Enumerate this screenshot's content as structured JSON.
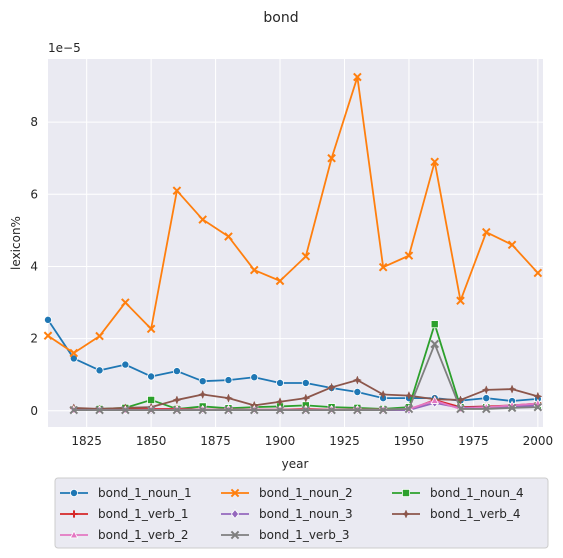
{
  "chart_data": {
    "type": "line",
    "title": "bond",
    "xlabel": "year",
    "ylabel": "lexicon%",
    "y_multiplier_label": "1e−5",
    "xlim": [
      1810,
      2002
    ],
    "ylim": [
      -0.45,
      9.75
    ],
    "xticks": [
      1825,
      1850,
      1875,
      1900,
      1925,
      1950,
      1975,
      2000
    ],
    "yticks": [
      0,
      2,
      4,
      6,
      8
    ],
    "grid": true,
    "legend_placement": "bottom (below axes), 3 columns",
    "series": [
      {
        "name": "bond_1_noun_1",
        "color": "#1f77b4",
        "marker": "circle",
        "x": [
          1810,
          1820,
          1830,
          1840,
          1850,
          1860,
          1870,
          1880,
          1890,
          1900,
          1910,
          1920,
          1930,
          1940,
          1950,
          1960,
          1970,
          1980,
          1990,
          2000
        ],
        "y": [
          2.52,
          1.45,
          1.12,
          1.28,
          0.95,
          1.1,
          0.82,
          0.85,
          0.93,
          0.77,
          0.77,
          0.63,
          0.52,
          0.35,
          0.35,
          0.35,
          0.28,
          0.35,
          0.27,
          0.33
        ]
      },
      {
        "name": "bond_1_noun_2",
        "color": "#ff7f0e",
        "marker": "x",
        "x": [
          1810,
          1820,
          1830,
          1840,
          1850,
          1860,
          1870,
          1880,
          1890,
          1900,
          1910,
          1920,
          1930,
          1940,
          1950,
          1960,
          1970,
          1980,
          1990,
          2000
        ],
        "y": [
          2.08,
          1.6,
          2.07,
          3.0,
          2.27,
          6.1,
          5.3,
          4.83,
          3.9,
          3.6,
          4.28,
          7.0,
          9.25,
          3.98,
          4.3,
          6.9,
          3.05,
          4.95,
          4.6,
          3.82
        ]
      },
      {
        "name": "bond_1_noun_4",
        "color": "#2ca02c",
        "marker": "square",
        "x": [
          1820,
          1830,
          1840,
          1850,
          1860,
          1870,
          1880,
          1890,
          1900,
          1910,
          1920,
          1930,
          1940,
          1950,
          1960,
          1970,
          1980,
          1990,
          2000
        ],
        "y": [
          0.03,
          0.05,
          0.08,
          0.3,
          0.05,
          0.12,
          0.07,
          0.1,
          0.12,
          0.15,
          0.1,
          0.08,
          0.05,
          0.1,
          2.4,
          0.1,
          0.1,
          0.1,
          0.15
        ]
      },
      {
        "name": "bond_1_verb_1",
        "color": "#d62728",
        "marker": "plus",
        "x": [
          1820,
          1830,
          1840,
          1850,
          1860,
          1870,
          1880,
          1890,
          1900,
          1910,
          1920,
          1930,
          1940,
          1950,
          1960,
          1970,
          1980,
          1990,
          2000
        ],
        "y": [
          0.05,
          0.03,
          0.05,
          0.05,
          0.05,
          0.03,
          0.03,
          0.03,
          0.03,
          0.05,
          0.03,
          0.03,
          0.03,
          0.03,
          0.3,
          0.1,
          0.12,
          0.15,
          0.2
        ]
      },
      {
        "name": "bond_1_noun_3",
        "color": "#9467bd",
        "marker": "diamond",
        "x": [
          1820,
          1830,
          1840,
          1850,
          1860,
          1870,
          1880,
          1890,
          1900,
          1910,
          1920,
          1930,
          1940,
          1950,
          1960,
          1970,
          1980,
          1990,
          2000
        ],
        "y": [
          0.02,
          0.02,
          0.02,
          0.02,
          0.02,
          0.02,
          0.02,
          0.02,
          0.02,
          0.02,
          0.02,
          0.02,
          0.02,
          0.02,
          0.22,
          0.08,
          0.1,
          0.12,
          0.15
        ]
      },
      {
        "name": "bond_1_verb_4",
        "color": "#8c564b",
        "marker": "star",
        "x": [
          1820,
          1830,
          1840,
          1850,
          1860,
          1870,
          1880,
          1890,
          1900,
          1910,
          1920,
          1930,
          1940,
          1950,
          1960,
          1970,
          1980,
          1990,
          2000
        ],
        "y": [
          0.08,
          0.05,
          0.08,
          0.1,
          0.3,
          0.45,
          0.35,
          0.15,
          0.25,
          0.35,
          0.65,
          0.85,
          0.45,
          0.42,
          0.32,
          0.3,
          0.58,
          0.6,
          0.4
        ]
      },
      {
        "name": "bond_1_verb_2",
        "color": "#e377c2",
        "marker": "triangle",
        "x": [
          1820,
          1830,
          1840,
          1850,
          1860,
          1870,
          1880,
          1890,
          1900,
          1910,
          1920,
          1930,
          1940,
          1950,
          1960,
          1970,
          1980,
          1990,
          2000
        ],
        "y": [
          0.02,
          0.02,
          0.02,
          0.03,
          0.03,
          0.03,
          0.03,
          0.03,
          0.03,
          0.03,
          0.03,
          0.03,
          0.03,
          0.05,
          0.28,
          0.05,
          0.1,
          0.15,
          0.2
        ]
      },
      {
        "name": "bond_1_verb_3",
        "color": "#7f7f7f",
        "marker": "x",
        "x": [
          1820,
          1830,
          1840,
          1850,
          1860,
          1870,
          1880,
          1890,
          1900,
          1910,
          1920,
          1930,
          1940,
          1950,
          1960,
          1970,
          1980,
          1990,
          2000
        ],
        "y": [
          0.02,
          0.02,
          0.02,
          0.02,
          0.02,
          0.02,
          0.02,
          0.02,
          0.02,
          0.02,
          0.02,
          0.02,
          0.02,
          0.05,
          1.85,
          0.05,
          0.05,
          0.08,
          0.1
        ]
      }
    ]
  }
}
